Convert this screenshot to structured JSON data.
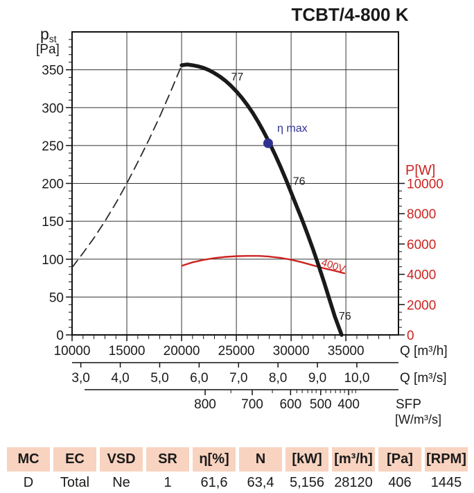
{
  "title": "TCBT/4-800 K",
  "colors": {
    "red": "#cc2420",
    "blue": "#2f3191",
    "black": "#1a1a1a",
    "grid": "#333333",
    "table_header_bg": "#f8d3c0"
  },
  "chart_data": {
    "type": "line",
    "title": "TCBT/4-800 K",
    "grid": true,
    "x_axis": {
      "label": "Q [m³/h]",
      "min": 10000,
      "max": 39800,
      "ticks": [
        10000,
        15000,
        20000,
        25000,
        30000,
        35000
      ],
      "tick_labels": [
        "10000",
        "15000",
        "20000",
        "25000",
        "30000",
        "35000"
      ],
      "minor_step": 1000
    },
    "x_axis_s": {
      "label": "Q [m³/s]",
      "ticks_m3h": [
        10800,
        14400,
        18000,
        21600,
        25200,
        28800,
        32400,
        36000
      ],
      "tick_labels": [
        "3,0",
        "4,0",
        "5,0",
        "6,0",
        "7,0",
        "8,0",
        "9,0",
        "10,0"
      ]
    },
    "sfp_axis": {
      "label": "SFP",
      "unit": "[W/m³/s]",
      "ticks_m3h": [
        22150,
        26450,
        29950,
        32700,
        35250
      ],
      "tick_labels": [
        "800",
        "700",
        "600",
        "500",
        "400"
      ],
      "minor_ticks_m3h": [
        24500,
        28290,
        30510,
        31010,
        31520,
        31900,
        32280,
        33170,
        33610,
        34050,
        34490,
        34870,
        35570,
        35890
      ]
    },
    "y_left": {
      "label_p": "p",
      "label_sub": "st",
      "label_unit": "[Pa]",
      "min": 0,
      "max": 400,
      "ticks": [
        0,
        50,
        100,
        150,
        200,
        250,
        300,
        350
      ],
      "tick_labels": [
        "0",
        "50",
        "100",
        "150",
        "200",
        "250",
        "300",
        "350"
      ],
      "minor_step": 10
    },
    "y_right": {
      "label": "P[W]",
      "min": 0,
      "max": 20000,
      "ticks": [
        0,
        2000,
        4000,
        6000,
        8000,
        10000
      ],
      "tick_labels": [
        "0",
        "2000",
        "4000",
        "6000",
        "8000",
        "10000"
      ],
      "minor_step": 500,
      "minor_max": 10000
    },
    "series": [
      {
        "name": "system-resistance-curve",
        "axis": "left",
        "color": "#2a2a2a",
        "width": 1.8,
        "dash": "13 8",
        "points": [
          [
            10000,
            89
          ],
          [
            11000,
            108
          ],
          [
            12000,
            128
          ],
          [
            13000,
            150
          ],
          [
            14000,
            174
          ],
          [
            15000,
            200
          ],
          [
            16000,
            228
          ],
          [
            17000,
            257
          ],
          [
            18000,
            288
          ],
          [
            19000,
            321
          ],
          [
            20000,
            356
          ]
        ]
      },
      {
        "name": "power-curve-400V",
        "axis": "right",
        "color": "#cc2420",
        "width": 2.4,
        "dash": null,
        "points": [
          [
            20060,
            4570
          ],
          [
            21000,
            4790
          ],
          [
            22000,
            4950
          ],
          [
            23000,
            5070
          ],
          [
            24000,
            5150
          ],
          [
            25000,
            5195
          ],
          [
            26000,
            5215
          ],
          [
            27000,
            5212
          ],
          [
            28000,
            5175
          ],
          [
            28120,
            5156
          ],
          [
            29000,
            5090
          ],
          [
            30000,
            4960
          ],
          [
            31000,
            4790
          ],
          [
            32000,
            4590
          ],
          [
            33000,
            4400
          ],
          [
            34000,
            4230
          ],
          [
            34860,
            4070
          ]
        ]
      },
      {
        "name": "fan-pressure-curve",
        "axis": "left",
        "color": "#1a1a1a",
        "width": 5.5,
        "dash": null,
        "points": [
          [
            20000,
            356
          ],
          [
            20500,
            357
          ],
          [
            21000,
            356
          ],
          [
            21500,
            354.5
          ],
          [
            22000,
            352.5
          ],
          [
            22500,
            349.5
          ],
          [
            23000,
            345.5
          ],
          [
            23500,
            341
          ],
          [
            24000,
            335.5
          ],
          [
            24500,
            329
          ],
          [
            25000,
            321.5
          ],
          [
            25500,
            313
          ],
          [
            26000,
            303.5
          ],
          [
            26500,
            293
          ],
          [
            27000,
            281
          ],
          [
            27500,
            268
          ],
          [
            28000,
            254
          ],
          [
            28500,
            239
          ],
          [
            29000,
            223
          ],
          [
            29500,
            206
          ],
          [
            30000,
            188
          ],
          [
            30500,
            170
          ],
          [
            31000,
            152
          ],
          [
            31500,
            133
          ],
          [
            32000,
            113
          ],
          [
            32500,
            92
          ],
          [
            33000,
            70
          ],
          [
            33500,
            47
          ],
          [
            34000,
            24
          ],
          [
            34612,
            0
          ]
        ]
      }
    ],
    "marker": {
      "label": "eta-max-point",
      "q": 27900,
      "pa": 253,
      "radius": 7,
      "color": "#2f3191"
    },
    "annotations": [
      {
        "text": "77",
        "q": 24520,
        "pa": 336,
        "color": "#1a1a1a",
        "size": 16,
        "rotate": 0
      },
      {
        "text": "76",
        "q": 30170,
        "pa": 198,
        "color": "#1a1a1a",
        "size": 16,
        "rotate": 0
      },
      {
        "text": "76",
        "q": 34350,
        "pa": 20,
        "color": "#1a1a1a",
        "size": 16,
        "rotate": 0
      },
      {
        "text": "η max",
        "q": 28730,
        "pa": 268,
        "color": "#2f3191",
        "size": 16,
        "rotate": 0
      },
      {
        "text": "400V",
        "q": 32700,
        "pa": 92,
        "color": "#cc2420",
        "size": 15,
        "rotate": 18
      }
    ]
  },
  "table": {
    "headers": [
      "MC",
      "EC",
      "VSD",
      "SR",
      "η[%]",
      "N",
      "[kW]",
      "[m³/h]",
      "[Pa]",
      "[RPM]"
    ],
    "values": [
      "D",
      "Total",
      "Ne",
      "1",
      "61,6",
      "63,4",
      "5,156",
      "28120",
      "406",
      "1445"
    ]
  }
}
